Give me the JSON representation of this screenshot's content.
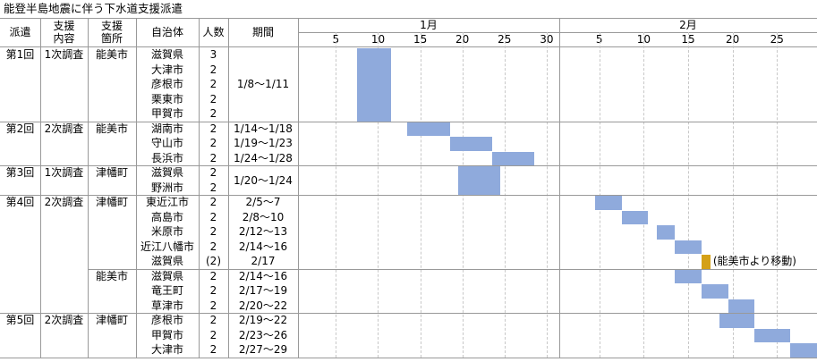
{
  "title": "能登半島地震に伴う下水道支援派遣",
  "header": {
    "dispatch": "派遣",
    "content": "支援\n内容",
    "site": "支援\n箇所",
    "municipality": "自治体",
    "people": "人数",
    "period": "期間"
  },
  "months": [
    {
      "label": "1月",
      "ticks": [
        5,
        10,
        15,
        20,
        25,
        30
      ]
    },
    {
      "label": "2月",
      "ticks": [
        5,
        10,
        15,
        20,
        25
      ]
    }
  ],
  "bar_color": "#8faadc",
  "groups": [
    {
      "dispatch": "第1回",
      "content": "1次調査",
      "sites": [
        {
          "site": "能美市",
          "period": "1/8～1/11",
          "entries": [
            {
              "municipality": "滋賀県",
              "people": 3
            },
            {
              "municipality": "大津市",
              "people": 2
            },
            {
              "municipality": "彦根市",
              "people": 2
            },
            {
              "municipality": "栗東市",
              "people": 2
            },
            {
              "municipality": "甲賀市",
              "people": 2
            }
          ]
        }
      ]
    },
    {
      "dispatch": "第2回",
      "content": "2次調査",
      "sites": [
        {
          "site": "能美市",
          "entries": [
            {
              "municipality": "湖南市",
              "people": 2,
              "period": "1/14～1/18"
            },
            {
              "municipality": "守山市",
              "people": 2,
              "period": "1/19～1/23"
            },
            {
              "municipality": "長浜市",
              "people": 2,
              "period": "1/24～1/28"
            }
          ]
        }
      ]
    },
    {
      "dispatch": "第3回",
      "content": "1次調査",
      "sites": [
        {
          "site": "津幡町",
          "period": "1/20～1/24",
          "entries": [
            {
              "municipality": "滋賀県",
              "people": 2
            },
            {
              "municipality": "野洲市",
              "people": 2
            }
          ]
        }
      ]
    },
    {
      "dispatch": "第4回",
      "content": "2次調査",
      "sites": [
        {
          "site": "津幡町",
          "entries": [
            {
              "municipality": "東近江市",
              "people": 2,
              "period": "2/5～7"
            },
            {
              "municipality": "高島市",
              "people": 2,
              "period": "2/8～10"
            },
            {
              "municipality": "米原市",
              "people": 2,
              "period": "2/12～13"
            },
            {
              "municipality": "近江八幡市",
              "people": 2,
              "period": "2/14～16"
            },
            {
              "municipality": "滋賀県",
              "people": "(2)",
              "period": "2/17",
              "color": "#d4a017",
              "note": "(能美市より移動)"
            }
          ]
        },
        {
          "site": "能美市",
          "entries": [
            {
              "municipality": "滋賀県",
              "people": 2,
              "period": "2/14～16"
            },
            {
              "municipality": "竜王町",
              "people": 2,
              "period": "2/17～19"
            },
            {
              "municipality": "草津市",
              "people": 2,
              "period": "2/20～22"
            }
          ]
        }
      ]
    },
    {
      "dispatch": "第5回",
      "content": "2次調査",
      "sites": [
        {
          "site": "津幡町",
          "entries": [
            {
              "municipality": "彦根市",
              "people": 2,
              "period": "2/19～22"
            },
            {
              "municipality": "甲賀市",
              "people": 2,
              "period": "2/23～26"
            },
            {
              "municipality": "大津市",
              "people": 2,
              "period": "2/27～29"
            }
          ]
        }
      ]
    }
  ]
}
